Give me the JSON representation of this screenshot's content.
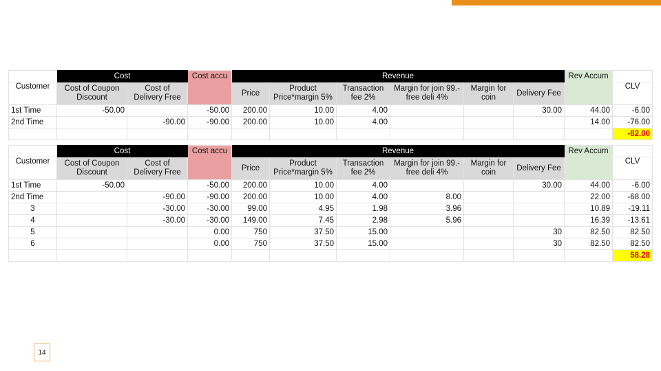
{
  "page": {
    "number": "14",
    "accent_color": "#e8901a"
  },
  "headers": {
    "cost": "Cost",
    "revenue": "Revenue",
    "customer": "Customer",
    "coupon": "Cost of Coupon Discount",
    "delivery_cost": "Cost of Delivery Free",
    "cost_accu": "Cost accu",
    "price": "Price",
    "product_margin": "Product Price*margin 5%",
    "transaction": "Transaction fee 2%",
    "margin_join": "Margin for join 99.- free deli 4%",
    "margin_coin": "Margin for coin",
    "delivery_fee": "Delivery Fee",
    "rev_accum": "Rev Accum",
    "clv": "CLV"
  },
  "table1": {
    "rows": [
      [
        "1st Time",
        "-50.00",
        "",
        "-50.00",
        "200.00",
        "10.00",
        "4.00",
        "",
        "",
        "30.00",
        "44.00",
        "-6.00"
      ],
      [
        "2nd Time",
        "",
        "-90.00",
        "-90.00",
        "200.00",
        "10.00",
        "4.00",
        "",
        "",
        "",
        "14.00",
        "-76.00"
      ]
    ],
    "total": "-82.00"
  },
  "table2": {
    "rows": [
      [
        "1st Time",
        "-50.00",
        "",
        "-50.00",
        "200.00",
        "10.00",
        "4.00",
        "",
        "",
        "30.00",
        "44.00",
        "-6.00"
      ],
      [
        "2nd Time",
        "",
        "-90.00",
        "-90.00",
        "200.00",
        "10.00",
        "4.00",
        "8.00",
        "",
        "",
        "22.00",
        "-68.00"
      ],
      [
        "3",
        "",
        "-30.00",
        "-30.00",
        "99.00",
        "4.95",
        "1.98",
        "3.96",
        "",
        "",
        "10.89",
        "-19.11"
      ],
      [
        "4",
        "",
        "-30.00",
        "-30.00",
        "149.00",
        "7.45",
        "2.98",
        "5.96",
        "",
        "",
        "16.39",
        "-13.61"
      ],
      [
        "5",
        "",
        "",
        "0.00",
        "750",
        "37.50",
        "15.00",
        "",
        "",
        "30",
        "82.50",
        "82.50"
      ],
      [
        "6",
        "",
        "",
        "0.00",
        "750",
        "37.50",
        "15.00",
        "",
        "",
        "30",
        "82.50",
        "82.50"
      ]
    ],
    "total": "58.28"
  }
}
